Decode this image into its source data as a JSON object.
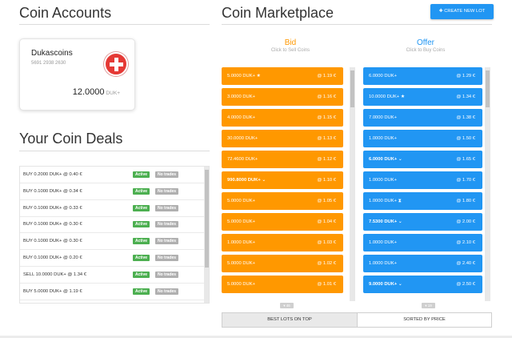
{
  "accounts": {
    "title": "Coin Accounts",
    "card": {
      "name": "Dukascoins",
      "number": "5691 2938 2630",
      "amount": "12.0000",
      "unit": "DUK+"
    }
  },
  "deals": {
    "title": "Your Coin Deals",
    "rows": [
      {
        "text": "BUY 0.2000 DUK+ @ 0.40 €",
        "status": "Active",
        "trades": "No trades"
      },
      {
        "text": "BUY 0.1000 DUK+ @ 0.34 €",
        "status": "Active",
        "trades": "No trades"
      },
      {
        "text": "BUY 0.1000 DUK+ @ 0.33 €",
        "status": "Active",
        "trades": "No trades"
      },
      {
        "text": "BUY 0.1000 DUK+ @ 0.30 €",
        "status": "Active",
        "trades": "No trades"
      },
      {
        "text": "BUY 0.1000 DUK+ @ 0.30 €",
        "status": "Active",
        "trades": "No trades"
      },
      {
        "text": "BUY 0.1000 DUK+ @ 0.20 €",
        "status": "Active",
        "trades": "No trades"
      },
      {
        "text": "SELL 10.0000 DUK+ @ 1.34 €",
        "status": "Active",
        "trades": "No trades"
      },
      {
        "text": "BUY 5.0000 DUK+ @ 1.19 €",
        "status": "Active",
        "trades": "No trades"
      }
    ]
  },
  "market": {
    "title": "Coin Marketplace",
    "create_label": "CREATE NEW LOT",
    "bid": {
      "heading": "Bid",
      "sub": "Click to Sell Coins",
      "count": "46"
    },
    "offer": {
      "heading": "Offer",
      "sub": "Click to Buy Coins",
      "count": "19"
    },
    "bids": [
      {
        "qty": "5.0000 DUK+",
        "mark": "star",
        "price": "@ 1.19 €"
      },
      {
        "qty": "3.0000 DUK+",
        "mark": "",
        "price": "@ 1.16 €"
      },
      {
        "qty": "4.0000 DUK+",
        "mark": "",
        "price": "@ 1.15 €"
      },
      {
        "qty": "30.0000 DUK+",
        "mark": "",
        "price": "@ 1.13 €"
      },
      {
        "qty": "72.4600 DUK+",
        "mark": "",
        "price": "@ 1.12 €"
      },
      {
        "qty": "990.8000 DUK+",
        "mark": "chevron",
        "price": "@ 1.10 €"
      },
      {
        "qty": "5.0000 DUK+",
        "mark": "",
        "price": "@ 1.05 €"
      },
      {
        "qty": "5.0000 DUK+",
        "mark": "",
        "price": "@ 1.04 €"
      },
      {
        "qty": "1.0000 DUK+",
        "mark": "",
        "price": "@ 1.03 €"
      },
      {
        "qty": "5.0000 DUK+",
        "mark": "",
        "price": "@ 1.02 €"
      },
      {
        "qty": "5.0000 DUK+",
        "mark": "",
        "price": "@ 1.01 €"
      }
    ],
    "offers": [
      {
        "qty": "6.0000 DUK+",
        "mark": "",
        "price": "@ 1.29 €"
      },
      {
        "qty": "10.0000 DUK+",
        "mark": "star",
        "price": "@ 1.34 €"
      },
      {
        "qty": "7.0000 DUK+",
        "mark": "",
        "price": "@ 1.38 €"
      },
      {
        "qty": "1.0000 DUK+",
        "mark": "",
        "price": "@ 1.50 €"
      },
      {
        "qty": "6.0000 DUK+",
        "mark": "chevron",
        "price": "@ 1.65 €"
      },
      {
        "qty": "1.0000 DUK+",
        "mark": "",
        "price": "@ 1.70 €"
      },
      {
        "qty": "1.0000 DUK+",
        "mark": "hourglass",
        "price": "@ 1.80 €"
      },
      {
        "qty": "7.5300 DUK+",
        "mark": "chevron",
        "price": "@ 2.00 €"
      },
      {
        "qty": "1.0000 DUK+",
        "mark": "",
        "price": "@ 2.10 €"
      },
      {
        "qty": "1.0000 DUK+",
        "mark": "",
        "price": "@ 2.40 €"
      },
      {
        "qty": "9.0000 DUK+",
        "mark": "chevron",
        "price": "@ 2.50 €"
      }
    ],
    "tabs": {
      "left": "BEST LOTS ON TOP",
      "right": "SORTED BY PRICE"
    }
  },
  "colors": {
    "bid": "#ff9800",
    "offer": "#2196f3",
    "active": "#4caf50",
    "no_trades": "#b0b0b0"
  }
}
